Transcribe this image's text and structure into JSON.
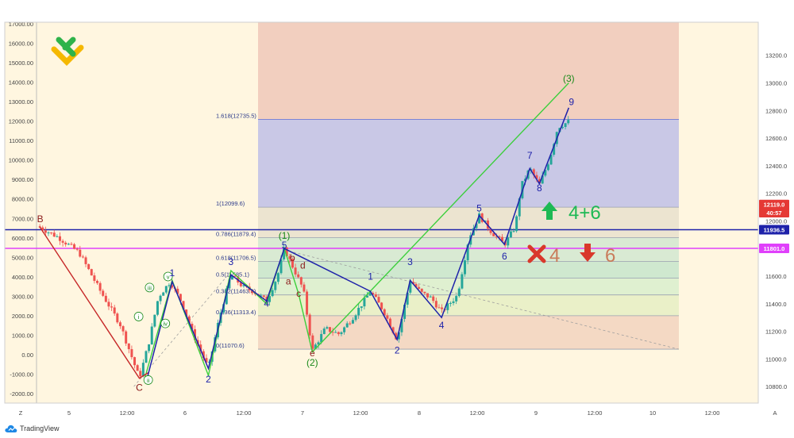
{
  "chart_data": {
    "type": "candlestick",
    "title": "",
    "left_axis": {
      "ticks": [
        17000,
        16000,
        15000,
        14000,
        13000,
        12000,
        11000,
        10000,
        9000,
        8000,
        7000,
        6000,
        5000,
        4000,
        3000,
        2000,
        1000,
        0,
        -1000,
        -2000
      ],
      "labels": [
        "17000.00",
        "16000.00",
        "15000.00",
        "14000.00",
        "13000.00",
        "12000.00",
        "11000.00",
        "10000.00",
        "9000.00",
        "8000.00",
        "7000.00",
        "6000.00",
        "5000.00",
        "4000.00",
        "3000.00",
        "2000.00",
        "1000.00",
        "0.00",
        "-1000.00",
        "-2000.00"
      ]
    },
    "right_axis": {
      "ticks": [
        13200,
        13000,
        12800,
        12600,
        12400,
        12200,
        12000,
        11800,
        11600,
        11400,
        11200,
        11000,
        10800
      ],
      "labels": [
        "13200.0",
        "13000.0",
        "12800.0",
        "12600.0",
        "12400.0",
        "12200.0",
        "12000.0",
        "11800.0",
        "11600.0",
        "11400.0",
        "11200.0",
        "11000.0",
        "10800.0"
      ],
      "ylim": [
        10680,
        13440
      ]
    },
    "x_axis": {
      "ticks": [
        "Z",
        "5",
        "12:00",
        "6",
        "12:00",
        "7",
        "12:00",
        "8",
        "12:00",
        "9",
        "12:00",
        "10",
        "12:00",
        "A"
      ]
    },
    "price_tags": [
      {
        "label": "12119.0",
        "color": "#e53935",
        "value": 12119
      },
      {
        "label": "40:57",
        "color": "#e53935",
        "value": 12060
      },
      {
        "label": "11936.5",
        "color": "#1e22aa",
        "value": 11936.5
      },
      {
        "label": "11801.0",
        "color": "#e040fb",
        "value": 11801
      }
    ],
    "hlines": [
      {
        "name": "blue-level",
        "value": 11936.5,
        "color": "#1e22aa"
      },
      {
        "name": "magenta-level",
        "value": 11801,
        "color": "#e040fb"
      }
    ],
    "fib_levels": [
      {
        "label": "1.618(12735.5)",
        "value": 12735.5
      },
      {
        "label": "1(12099.6)",
        "value": 12099.6
      },
      {
        "label": "0.786(11879.4)",
        "value": 11879.4
      },
      {
        "label": "0.618(11706.5)",
        "value": 11706.5
      },
      {
        "label": "0.5(11585.1)",
        "value": 11585.1
      },
      {
        "label": "0.382(11463.8)",
        "value": 11463.8
      },
      {
        "label": "0.236(11313.4)",
        "value": 11313.4
      },
      {
        "label": "0(11070.6)",
        "value": 11070.6
      }
    ],
    "fib_band_colors": [
      "#c9c8e6",
      "#ece4d0",
      "#d9ead3",
      "#cfe8cf",
      "#dff0d0",
      "#eaf0c8",
      "#f4d9c4"
    ],
    "fib_bg_top": "#f2cfbf",
    "wave_labels": [
      {
        "text": "B",
        "color": "#8b1a1a",
        "t": 0.3,
        "price": 11990
      },
      {
        "text": "C",
        "color": "#8b1a1a",
        "t": 14.8,
        "price": 10770
      },
      {
        "text": "i",
        "color": "#1b8a1b",
        "t": 14.7,
        "price": 11290,
        "circled": true
      },
      {
        "text": "ii",
        "color": "#1b8a1b",
        "t": 16.1,
        "price": 10830,
        "circled": true
      },
      {
        "text": "iii",
        "color": "#1b8a1b",
        "t": 16.3,
        "price": 11500,
        "circled": true
      },
      {
        "text": "iv",
        "color": "#1b8a1b",
        "t": 18.6,
        "price": 11240,
        "circled": true
      },
      {
        "text": "v",
        "color": "#1b8a1b",
        "t": 19.0,
        "price": 11580,
        "circled": true
      },
      {
        "text": "1",
        "color": "#1e22aa",
        "t": 19.6,
        "price": 11600
      },
      {
        "text": "2",
        "color": "#1e22aa",
        "t": 24.9,
        "price": 10830
      },
      {
        "text": "3",
        "color": "#1e22aa",
        "t": 28.2,
        "price": 11680
      },
      {
        "text": "4",
        "color": "#1e22aa",
        "t": 33.4,
        "price": 11380
      },
      {
        "text": "5",
        "color": "#1e22aa",
        "t": 36.0,
        "price": 11800
      },
      {
        "text": "(1)",
        "color": "#1b8a1b",
        "t": 36.0,
        "price": 11870
      },
      {
        "text": "b",
        "color": "#8b1a1a",
        "t": 37.2,
        "price": 11710
      },
      {
        "text": "a",
        "color": "#8b1a1a",
        "t": 36.6,
        "price": 11540
      },
      {
        "text": "d",
        "color": "#8b1a1a",
        "t": 38.7,
        "price": 11655
      },
      {
        "text": "c",
        "color": "#8b1a1a",
        "t": 38.1,
        "price": 11450
      },
      {
        "text": "e",
        "color": "#8b1a1a",
        "t": 40.1,
        "price": 11020
      },
      {
        "text": "(2)",
        "color": "#1b8a1b",
        "t": 40.1,
        "price": 10950
      },
      {
        "text": "1",
        "color": "#1e22aa",
        "t": 48.6,
        "price": 11575
      },
      {
        "text": "2",
        "color": "#1e22aa",
        "t": 52.5,
        "price": 11040
      },
      {
        "text": "3",
        "color": "#1e22aa",
        "t": 54.4,
        "price": 11680
      },
      {
        "text": "4",
        "color": "#1e22aa",
        "t": 59.0,
        "price": 11220
      },
      {
        "text": "5",
        "color": "#1e22aa",
        "t": 64.5,
        "price": 12070
      },
      {
        "text": "6",
        "color": "#1e22aa",
        "t": 68.2,
        "price": 11720
      },
      {
        "text": "7",
        "color": "#1e22aa",
        "t": 71.9,
        "price": 12450
      },
      {
        "text": "8",
        "color": "#1e22aa",
        "t": 73.3,
        "price": 12215
      },
      {
        "text": "(3)",
        "color": "#1b8a1b",
        "t": 77.6,
        "price": 13010
      },
      {
        "text": "9",
        "color": "#1e22aa",
        "t": 78.0,
        "price": 12840
      }
    ],
    "zigzag_red": [
      [
        0.2,
        11960
      ],
      [
        14.8,
        10860
      ],
      [
        16.1,
        10900
      ]
    ],
    "zigzag_green": [
      [
        15.6,
        10860
      ],
      [
        19.6,
        11570
      ],
      [
        24.9,
        10880
      ],
      [
        28.2,
        11640
      ],
      [
        33.4,
        11400
      ],
      [
        36.0,
        11800
      ],
      [
        38.1,
        11470
      ],
      [
        40.1,
        11050
      ],
      [
        77.6,
        13000
      ]
    ],
    "zigzag_blue": [
      [
        16.0,
        10870
      ],
      [
        19.6,
        11560
      ],
      [
        24.9,
        10930
      ],
      [
        28.2,
        11610
      ],
      [
        33.4,
        11420
      ],
      [
        36.0,
        11800
      ],
      [
        48.6,
        11490
      ],
      [
        52.5,
        11140
      ],
      [
        54.4,
        11570
      ],
      [
        59.0,
        11300
      ],
      [
        64.5,
        12040
      ],
      [
        68.2,
        11830
      ],
      [
        71.9,
        12380
      ],
      [
        73.3,
        12270
      ],
      [
        77.6,
        12820
      ]
    ],
    "signals": [
      {
        "kind": "up-arrow",
        "text": "4+6",
        "color": "#1db954"
      },
      {
        "kind": "cross",
        "text": "4",
        "color": "#d9382b"
      },
      {
        "kind": "down-arrow",
        "text": "6",
        "color": "#d9382b"
      }
    ],
    "candles_anchor_path": [
      [
        0,
        11960
      ],
      [
        3,
        11880
      ],
      [
        6,
        11770
      ],
      [
        9,
        11500
      ],
      [
        12,
        11250
      ],
      [
        14.8,
        10860
      ],
      [
        16.2,
        11120
      ],
      [
        17.6,
        11450
      ],
      [
        19.3,
        11560
      ],
      [
        21,
        11410
      ],
      [
        22.5,
        11200
      ],
      [
        24.9,
        10930
      ],
      [
        26.5,
        11300
      ],
      [
        28.2,
        11610
      ],
      [
        30,
        11520
      ],
      [
        31.5,
        11490
      ],
      [
        33.4,
        11420
      ],
      [
        35,
        11600
      ],
      [
        36.0,
        11800
      ],
      [
        37.5,
        11640
      ],
      [
        38.8,
        11500
      ],
      [
        40.1,
        11060
      ],
      [
        42,
        11220
      ],
      [
        44,
        11180
      ],
      [
        46,
        11300
      ],
      [
        48.6,
        11490
      ],
      [
        50.5,
        11350
      ],
      [
        52.5,
        11140
      ],
      [
        54.4,
        11570
      ],
      [
        56,
        11480
      ],
      [
        57.5,
        11440
      ],
      [
        59.0,
        11340
      ],
      [
        61.3,
        11460
      ],
      [
        63,
        11880
      ],
      [
        64.5,
        12040
      ],
      [
        66.3,
        11920
      ],
      [
        68.2,
        11830
      ],
      [
        69.8,
        11960
      ],
      [
        70.6,
        12250
      ],
      [
        71.9,
        12380
      ],
      [
        73.3,
        12260
      ],
      [
        74.8,
        12450
      ],
      [
        76.0,
        12680
      ],
      [
        77.6,
        12720
      ]
    ]
  },
  "footer": {
    "brand": "TradingView"
  }
}
